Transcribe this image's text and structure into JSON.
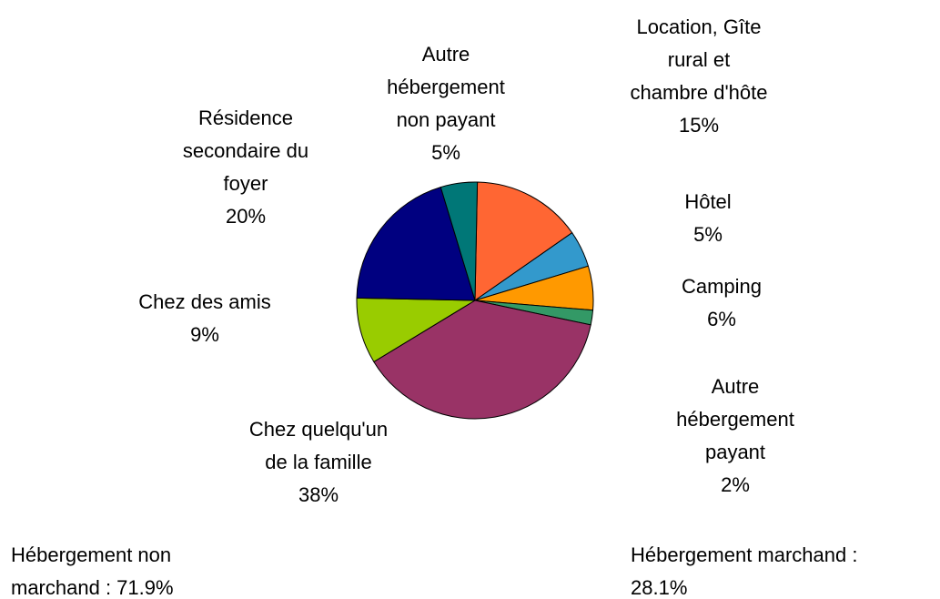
{
  "chart_data": {
    "type": "pie",
    "categories": [
      "Location, Gîte\nrural et\nchambre d'hôte",
      "Hôtel",
      "Camping",
      "Autre\nhébergement\npayant",
      "Chez quelqu'un\nde la famille",
      "Chez des amis",
      "Résidence\nsecondaire du\nfoyer",
      "Autre\nhébergement\nnon payant"
    ],
    "values": [
      15,
      5,
      6,
      2,
      38,
      9,
      20,
      5
    ],
    "value_labels": [
      "15%",
      "5%",
      "6%",
      "2%",
      "38%",
      "9%",
      "20%",
      "5%"
    ],
    "colors": [
      "#ff6633",
      "#3399cc",
      "#ff9900",
      "#339966",
      "#993366",
      "#99cc00",
      "#000080",
      "#007777"
    ],
    "annotations": [
      "Hébergement non\nmarchand : 71.9%",
      "Hébergement marchand :\n28.1%"
    ]
  }
}
